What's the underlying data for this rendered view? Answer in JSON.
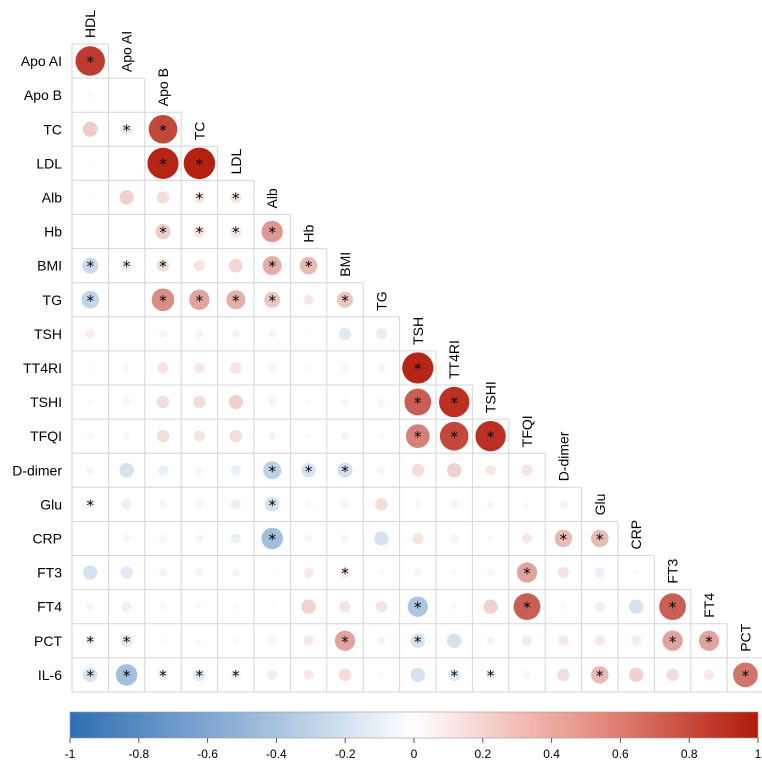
{
  "chart_data": {
    "type": "heatmap",
    "style": "correlation-circles-lower-triangle",
    "variables": [
      "HDL",
      "Apo AI",
      "Apo B",
      "TC",
      "LDL",
      "Alb",
      "Hb",
      "BMI",
      "TG",
      "TSH",
      "TT4RI",
      "TSHI",
      "TFQI",
      "D-dimer",
      "Glu",
      "CRP",
      "FT3",
      "FT4",
      "PCT",
      "IL-6"
    ],
    "row_labels": [
      "Apo AI",
      "Apo B",
      "TC",
      "LDL",
      "Alb",
      "Hb",
      "BMI",
      "TG",
      "TSH",
      "TT4RI",
      "TSHI",
      "TFQI",
      "D-dimer",
      "Glu",
      "CRP",
      "FT3",
      "FT4",
      "PCT",
      "IL-6"
    ],
    "column_labels": [
      "HDL",
      "Apo AI",
      "Apo B",
      "TC",
      "LDL",
      "Alb",
      "Hb",
      "BMI",
      "TG",
      "TSH",
      "TT4RI",
      "TSHI",
      "TFQI",
      "D-dimer",
      "Glu",
      "CRP",
      "FT3",
      "FT4",
      "PCT"
    ],
    "significance_marker": "*",
    "values": [
      [
        0.85
      ],
      [
        -0.03,
        0.01
      ],
      [
        0.22,
        0.12,
        0.8
      ],
      [
        0.02,
        0.01,
        0.95,
        0.97
      ],
      [
        0.02,
        0.2,
        0.15,
        0.12,
        0.12
      ],
      [
        -0.02,
        0.01,
        0.22,
        0.12,
        0.12,
        0.45
      ],
      [
        -0.25,
        -0.12,
        0.15,
        0.12,
        0.18,
        0.35,
        0.3
      ],
      [
        -0.3,
        0.01,
        0.5,
        0.4,
        0.35,
        0.25,
        0.1,
        0.25
      ],
      [
        0.08,
        0.01,
        0.06,
        0.06,
        0.06,
        -0.06,
        -0.02,
        -0.15,
        -0.12
      ],
      [
        -0.03,
        0.03,
        0.12,
        0.1,
        0.12,
        0.06,
        0.03,
        -0.05,
        0.06,
        0.95
      ],
      [
        -0.03,
        -0.06,
        0.15,
        0.15,
        0.2,
        0.06,
        0.03,
        0.05,
        0.05,
        0.7,
        0.9
      ],
      [
        0.04,
        -0.06,
        0.15,
        0.12,
        0.15,
        0.06,
        0.03,
        0.06,
        0.03,
        0.55,
        0.8,
        0.9
      ],
      [
        -0.06,
        -0.2,
        -0.1,
        -0.06,
        -0.1,
        -0.32,
        -0.2,
        -0.22,
        -0.06,
        0.15,
        0.2,
        0.1,
        0.12
      ],
      [
        -0.08,
        -0.1,
        -0.06,
        -0.06,
        -0.1,
        -0.2,
        0.04,
        -0.06,
        0.15,
        0.03,
        0.06,
        0.05,
        0.03,
        0.06
      ],
      [
        0.0,
        -0.06,
        -0.06,
        -0.06,
        -0.1,
        -0.45,
        -0.06,
        -0.06,
        -0.2,
        0.12,
        0.06,
        0.03,
        0.1,
        0.3,
        0.3
      ],
      [
        -0.2,
        -0.15,
        0.06,
        0.06,
        0.06,
        0.02,
        0.1,
        0.1,
        0.03,
        -0.06,
        0.03,
        0.05,
        0.4,
        0.12,
        -0.1,
        0.03
      ],
      [
        -0.06,
        -0.1,
        0.04,
        0.03,
        0.03,
        -0.03,
        0.2,
        0.12,
        0.12,
        -0.4,
        0.03,
        0.2,
        0.7,
        0.03,
        -0.1,
        -0.2,
        0.7
      ],
      [
        -0.1,
        -0.15,
        0.03,
        0.03,
        0.03,
        -0.06,
        0.1,
        0.4,
        0.06,
        -0.2,
        -0.2,
        0.06,
        -0.1,
        0.1,
        0.1,
        -0.1,
        0.4,
        0.4
      ],
      [
        -0.2,
        -0.45,
        -0.1,
        -0.15,
        -0.1,
        -0.1,
        0.1,
        0.15,
        0.03,
        -0.2,
        -0.15,
        -0.1,
        -0.06,
        0.15,
        0.3,
        0.2,
        0.15,
        0.1,
        0.6
      ]
    ],
    "significant": [
      [
        true
      ],
      [
        false,
        false
      ],
      [
        false,
        true,
        true
      ],
      [
        false,
        false,
        true,
        true
      ],
      [
        false,
        false,
        false,
        true,
        true
      ],
      [
        false,
        false,
        true,
        true,
        true,
        true
      ],
      [
        true,
        true,
        true,
        false,
        false,
        true,
        true
      ],
      [
        true,
        false,
        true,
        true,
        true,
        true,
        false,
        true
      ],
      [
        false,
        false,
        false,
        false,
        false,
        false,
        false,
        false,
        false
      ],
      [
        false,
        false,
        false,
        false,
        false,
        false,
        false,
        false,
        false,
        true
      ],
      [
        false,
        false,
        false,
        false,
        false,
        false,
        false,
        false,
        false,
        true,
        true
      ],
      [
        false,
        false,
        false,
        false,
        false,
        false,
        false,
        false,
        false,
        true,
        true,
        true
      ],
      [
        false,
        false,
        false,
        false,
        false,
        true,
        true,
        true,
        false,
        false,
        false,
        false,
        false,
        false
      ],
      [
        true,
        false,
        false,
        false,
        false,
        true,
        false,
        false,
        false,
        false,
        false,
        false,
        false,
        false
      ],
      [
        false,
        false,
        false,
        false,
        false,
        true,
        false,
        false,
        false,
        false,
        false,
        false,
        false,
        true,
        true
      ],
      [
        false,
        false,
        false,
        false,
        false,
        false,
        false,
        true,
        false,
        false,
        false,
        false,
        true,
        false,
        false,
        false
      ],
      [
        false,
        false,
        false,
        false,
        false,
        false,
        false,
        false,
        false,
        true,
        false,
        false,
        true,
        false,
        false,
        false,
        true
      ],
      [
        true,
        true,
        false,
        false,
        false,
        false,
        false,
        true,
        false,
        true,
        false,
        false,
        false,
        false,
        false,
        false,
        true,
        true
      ],
      [
        true,
        true,
        true,
        true,
        true,
        false,
        false,
        false,
        false,
        false,
        true,
        true,
        false,
        false,
        true,
        false,
        false,
        false,
        true
      ]
    ],
    "colorbar": {
      "range": [
        -1,
        1
      ],
      "ticks": [
        "-1",
        "-0.8",
        "-0.6",
        "-0.4",
        "-0.2",
        "0",
        "0.2",
        "0.4",
        "0.6",
        "0.8",
        "1"
      ],
      "colors": {
        "negative": "#2f6fb4",
        "neutral": "#ffffff",
        "positive": "#b21a0a"
      }
    }
  }
}
